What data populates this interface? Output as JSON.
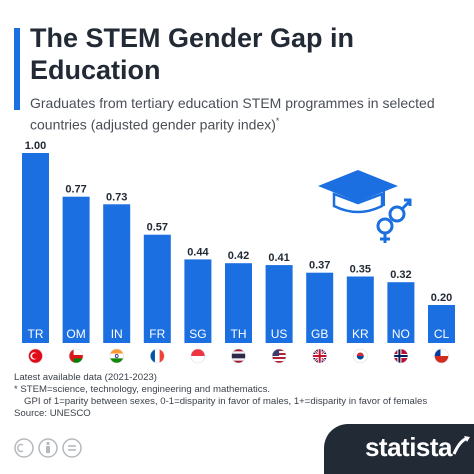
{
  "header": {
    "title": "The STEM Gender Gap in Education",
    "subtitle": "Graduates from tertiary education STEM programmes in selected countries (adjusted gender parity index)",
    "subtitle_marker": "*"
  },
  "chart_data": {
    "type": "bar",
    "categories": [
      "TR",
      "OM",
      "IN",
      "FR",
      "SG",
      "TH",
      "US",
      "GB",
      "KR",
      "NO",
      "CL"
    ],
    "values": [
      1.0,
      0.77,
      0.73,
      0.57,
      0.44,
      0.42,
      0.41,
      0.37,
      0.35,
      0.32,
      0.2
    ],
    "value_labels": [
      "1.00",
      "0.77",
      "0.73",
      "0.57",
      "0.44",
      "0.42",
      "0.41",
      "0.37",
      "0.35",
      "0.32",
      "0.20"
    ],
    "ylim": [
      0,
      1
    ],
    "grid": false,
    "bar_color": "#1b6fe0"
  },
  "flags": [
    "turkey-flag",
    "oman-flag",
    "india-flag",
    "france-flag",
    "singapore-flag",
    "thailand-flag",
    "usa-flag",
    "uk-flag",
    "south-korea-flag",
    "norway-flag",
    "chile-flag"
  ],
  "decoration": {
    "icon": "graduation-cap-gender-icon",
    "color": "#1b6fe0"
  },
  "footnotes": {
    "line1": "Latest available data (2021-2023)",
    "line2": "* STEM=science, technology, engineering and mathematics.",
    "line3": "GPI of 1=parity between sexes, 0-1=disparity in favor of males, 1+=disparity in favor of females",
    "line4": "Source: UNESCO"
  },
  "branding": {
    "name": "statista",
    "color": "#222a35"
  }
}
